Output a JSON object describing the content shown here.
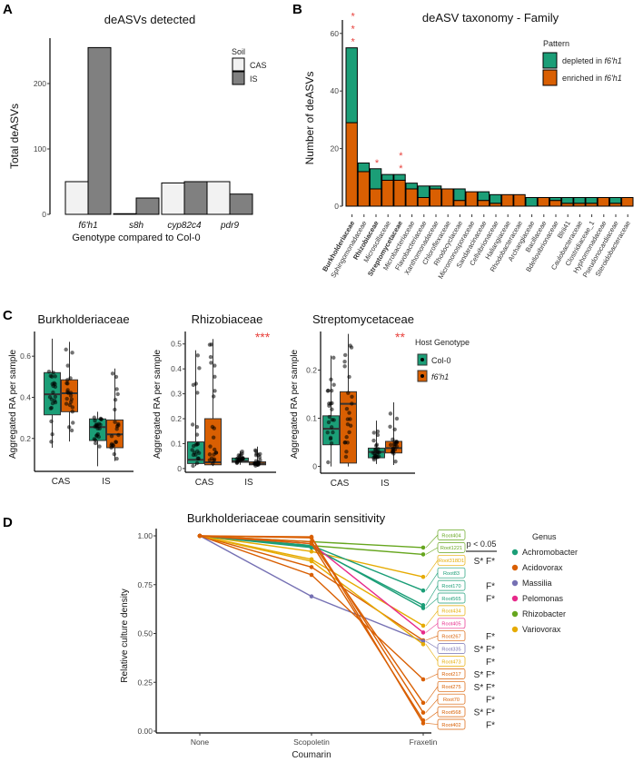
{
  "panels": {
    "a": "A",
    "b": "B",
    "c": "C",
    "d": "D"
  },
  "chart_data": [
    {
      "type": "bar",
      "title": "deASVs detected",
      "xlabel": "Genotype compared to Col-0",
      "ylabel": "Total deASVs",
      "ylim": [
        0,
        260
      ],
      "yticks": [
        0,
        100,
        200
      ],
      "categories": [
        "f6'h1",
        "s8h",
        "cyp82c4",
        "pdr9"
      ],
      "legend_title": "Soil",
      "legend_position": "top-right",
      "series": [
        {
          "name": "CAS",
          "color": "#f2f2f2",
          "values": [
            50,
            1,
            48,
            50
          ]
        },
        {
          "name": "IS",
          "color": "#808080",
          "values": [
            255,
            25,
            50,
            31
          ]
        }
      ]
    },
    {
      "type": "bar",
      "stacked": true,
      "title": "deASV taxonomy - Family",
      "ylabel": "Number of deASVs",
      "ylim": [
        0,
        63
      ],
      "yticks": [
        0,
        20,
        40,
        60
      ],
      "legend_title": "Pattern",
      "legend_position": "top-right",
      "categories": [
        "Burkholderiaceae",
        "Sphingomonadaceae",
        "Rhizobiaceae",
        "Microscillaceae",
        "Streptomycetaceae",
        "Microbacteriaceae",
        "Flavobacteriaceae",
        "Xanthomonadaceae",
        "Chloroflexaceae",
        "Rhodocyclaceae",
        "Micromonosporaceae",
        "Sandaracinaceae",
        "Cellvibrionaceae",
        "Haliangiaceae",
        "Rhodobacteraceae",
        "Archangiaceae",
        "Bacillaceae",
        "Bdellovibrionaceae",
        "Blrii41",
        "Caulobacteraceae",
        "Clostridiaceae_1",
        "Hyphomonadaceae",
        "Pseudonocardiaceae",
        "Steroidobacteraceae"
      ],
      "bold_categories": [
        "Burkholderiaceae",
        "Rhizobiaceae",
        "Streptomycetaceae"
      ],
      "series": [
        {
          "name_prefix": "enriched in ",
          "name_italic": "f6'h1",
          "color": "#d95f02",
          "values": [
            29,
            12,
            6,
            9,
            9,
            6,
            3,
            6,
            6,
            2,
            5,
            2,
            1,
            4,
            4,
            0,
            3,
            2,
            1,
            1,
            1,
            3,
            1,
            3
          ]
        },
        {
          "name_prefix": "depleted in ",
          "name_italic": "f6'h1",
          "color": "#1b9e77",
          "values": [
            26,
            3,
            7,
            2,
            2,
            2,
            4,
            1,
            0,
            4,
            0,
            3,
            3,
            0,
            0,
            3,
            0,
            1,
            2,
            2,
            2,
            0,
            2,
            0
          ]
        }
      ],
      "significance": [
        {
          "category": "Burkholderiaceae",
          "label": "***"
        },
        {
          "category": "Rhizobiaceae",
          "label": "*"
        },
        {
          "category": "Streptomycetaceae",
          "label": "**"
        }
      ]
    },
    {
      "type": "box",
      "ylabel": "Aggregated RA per sample",
      "categories": [
        "CAS",
        "IS"
      ],
      "legend_title": "Host Genotype",
      "legend_position": "right",
      "groups": [
        {
          "name": "Col-0",
          "color": "#1b9e77"
        },
        {
          "name": "f6'h1",
          "color": "#d95f02",
          "italic": true
        }
      ],
      "facets": [
        {
          "title": "Burkholderiaceae",
          "ylim": [
            0.04,
            0.72
          ],
          "yticks": [
            0.2,
            0.4,
            0.6
          ],
          "significance": "",
          "boxes": [
            {
              "category": "CAS",
              "group": "Col-0",
              "min": 0.155,
              "q1": 0.315,
              "median": 0.415,
              "q3": 0.52,
              "max": 0.685
            },
            {
              "category": "CAS",
              "group": "f6'h1",
              "min": 0.185,
              "q1": 0.33,
              "median": 0.42,
              "q3": 0.485,
              "max": 0.67
            },
            {
              "category": "IS",
              "group": "Col-0",
              "min": 0.065,
              "q1": 0.19,
              "median": 0.255,
              "q3": 0.295,
              "max": 0.33
            },
            {
              "category": "IS",
              "group": "f6'h1",
              "min": 0.09,
              "q1": 0.155,
              "median": 0.22,
              "q3": 0.29,
              "max": 0.54
            }
          ]
        },
        {
          "title": "Rhizobiaceae",
          "ylim": [
            -0.015,
            0.55
          ],
          "yticks": [
            0.0,
            0.1,
            0.2,
            0.3,
            0.4,
            0.5
          ],
          "significance": "***",
          "boxes": [
            {
              "category": "CAS",
              "group": "Col-0",
              "min": 0.01,
              "q1": 0.02,
              "median": 0.035,
              "q3": 0.107,
              "max": 0.475
            },
            {
              "category": "CAS",
              "group": "f6'h1",
              "min": 0.01,
              "q1": 0.015,
              "median": 0.025,
              "q3": 0.2,
              "max": 0.52
            },
            {
              "category": "IS",
              "group": "Col-0",
              "min": 0.015,
              "q1": 0.025,
              "median": 0.03,
              "q3": 0.042,
              "max": 0.07
            },
            {
              "category": "IS",
              "group": "f6'h1",
              "min": 0.008,
              "q1": 0.015,
              "median": 0.02,
              "q3": 0.027,
              "max": 0.088
            }
          ]
        },
        {
          "title": "Streptomycetaceae",
          "ylim": [
            -0.014,
            0.28
          ],
          "yticks": [
            0.0,
            0.1,
            0.2
          ],
          "significance": "**",
          "boxes": [
            {
              "category": "CAS",
              "group": "Col-0",
              "min": 0.0,
              "q1": 0.045,
              "median": 0.078,
              "q3": 0.105,
              "max": 0.23
            },
            {
              "category": "CAS",
              "group": "f6'h1",
              "min": 0.0,
              "q1": 0.007,
              "median": 0.13,
              "q3": 0.155,
              "max": 0.275
            },
            {
              "category": "IS",
              "group": "Col-0",
              "min": 0.005,
              "q1": 0.018,
              "median": 0.03,
              "q3": 0.038,
              "max": 0.095
            },
            {
              "category": "IS",
              "group": "f6'h1",
              "min": 0.003,
              "q1": 0.028,
              "median": 0.038,
              "q3": 0.052,
              "max": 0.133
            }
          ]
        }
      ]
    },
    {
      "type": "line",
      "title": "Burkholderiaceae coumarin sensitivity",
      "xlabel": "Coumarin",
      "ylabel": "Relative culture density",
      "x": [
        "None",
        "Scopoletin",
        "Fraxetin"
      ],
      "ylim": [
        0,
        1.0
      ],
      "yticks": [
        "0.00",
        "0.25",
        "0.50",
        "0.75",
        "1.00"
      ],
      "significance_note": "p < 0.05",
      "legend_title": "Genus",
      "legend_position": "right",
      "genera": [
        {
          "name": "Achromobacter",
          "color": "#1b9e77"
        },
        {
          "name": "Acidovorax",
          "color": "#d95f02"
        },
        {
          "name": "Massilia",
          "color": "#7570b3"
        },
        {
          "name": "Pelomonas",
          "color": "#e7298a"
        },
        {
          "name": "Rhizobacter",
          "color": "#66a61e"
        },
        {
          "name": "Variovorax",
          "color": "#e6ab02"
        }
      ],
      "series": [
        {
          "name": "Root404",
          "genus": "Rhizobacter",
          "values": [
            1.0,
            0.97,
            0.94
          ],
          "sig": ""
        },
        {
          "name": "Root1221",
          "genus": "Rhizobacter",
          "values": [
            1.0,
            0.95,
            0.905
          ],
          "sig": ""
        },
        {
          "name": "Root318D1",
          "genus": "Variovorax",
          "values": [
            1.0,
            0.92,
            0.79
          ],
          "sig": "S* F*"
        },
        {
          "name": "Root83",
          "genus": "Achromobacter",
          "values": [
            1.0,
            0.95,
            0.72
          ],
          "sig": ""
        },
        {
          "name": "Root170",
          "genus": "Achromobacter",
          "values": [
            1.0,
            0.94,
            0.645
          ],
          "sig": "F*"
        },
        {
          "name": "Root565",
          "genus": "Achromobacter",
          "values": [
            1.0,
            0.945,
            0.63
          ],
          "sig": "F*"
        },
        {
          "name": "Root434",
          "genus": "Variovorax",
          "values": [
            1.0,
            0.88,
            0.54
          ],
          "sig": ""
        },
        {
          "name": "Root405",
          "genus": "Pelomonas",
          "values": [
            1.0,
            0.96,
            0.505
          ],
          "sig": ""
        },
        {
          "name": "Root267",
          "genus": "Acidovorax",
          "values": [
            1.0,
            0.84,
            0.465
          ],
          "sig": "F*"
        },
        {
          "name": "Root335",
          "genus": "Massilia",
          "values": [
            1.0,
            0.69,
            0.46
          ],
          "sig": "S* F*"
        },
        {
          "name": "Root473",
          "genus": "Variovorax",
          "values": [
            1.0,
            0.87,
            0.445
          ],
          "sig": "F*"
        },
        {
          "name": "Root217",
          "genus": "Acidovorax",
          "values": [
            1.0,
            0.8,
            0.265
          ],
          "sig": "S* F*"
        },
        {
          "name": "Root275",
          "genus": "Acidovorax",
          "values": [
            1.0,
            0.97,
            0.145
          ],
          "sig": "S* F*"
        },
        {
          "name": "Root70",
          "genus": "Acidovorax",
          "values": [
            1.0,
            0.99,
            0.095
          ],
          "sig": "F*"
        },
        {
          "name": "Root568",
          "genus": "Acidovorax",
          "values": [
            1.0,
            0.96,
            0.055
          ],
          "sig": "S* F*"
        },
        {
          "name": "Root402",
          "genus": "Acidovorax",
          "values": [
            1.0,
            0.995,
            0.04
          ],
          "sig": "F*"
        }
      ]
    }
  ]
}
